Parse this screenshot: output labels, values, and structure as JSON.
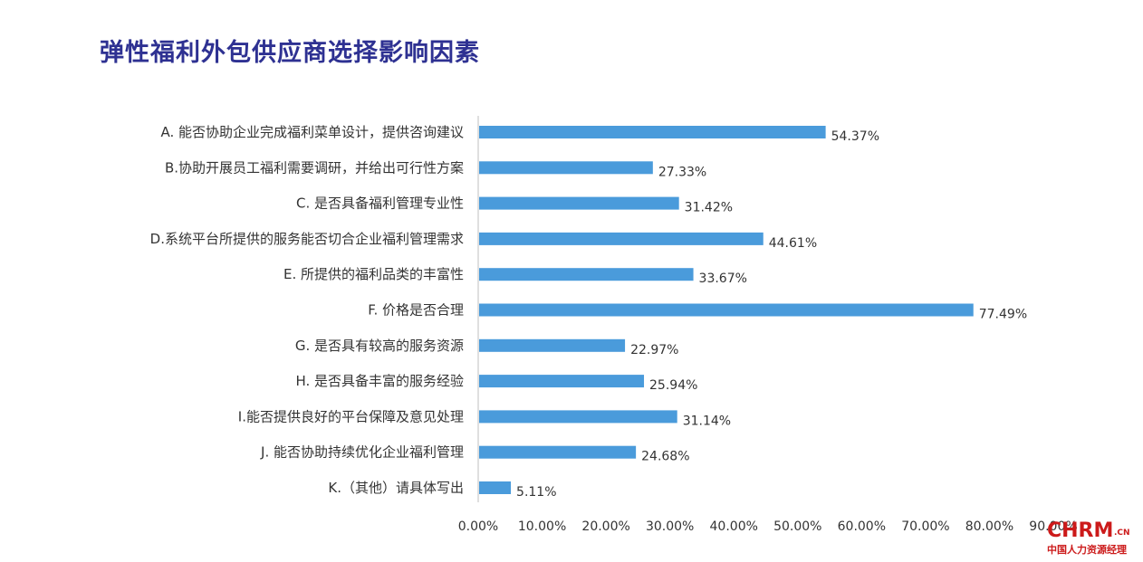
{
  "page": {
    "title": "弹性福利外包供应商选择影响因素"
  },
  "chart_data": {
    "type": "bar",
    "orientation": "horizontal",
    "title": "弹性福利外包供应商选择影响因素",
    "categories": [
      "A. 能否协助企业完成福利菜单设计，提供咨询建议",
      "B.协助开展员工福利需要调研，并给出可行性方案",
      "C. 是否具备福利管理专业性",
      "D.系统平台所提供的服务能否切合企业福利管理需求",
      "E. 所提供的福利品类的丰富性",
      "F. 价格是否合理",
      "G. 是否具有较高的服务资源",
      "H. 是否具备丰富的服务经验",
      "I.能否提供良好的平台保障及意见处理",
      "J. 能否协助持续优化企业福利管理",
      "K.（其他）请具体写出"
    ],
    "values": [
      54.37,
      27.33,
      31.42,
      44.61,
      33.67,
      77.49,
      22.97,
      25.94,
      31.14,
      24.68,
      5.11
    ],
    "value_labels": [
      "54.37%",
      "27.33%",
      "31.42%",
      "44.61%",
      "33.67%",
      "77.49%",
      "22.97%",
      "25.94%",
      "31.14%",
      "24.68%",
      "5.11%"
    ],
    "xlim": [
      0,
      90
    ],
    "xticks": [
      "0.00%",
      "10.00%",
      "20.00%",
      "30.00%",
      "40.00%",
      "50.00%",
      "60.00%",
      "70.00%",
      "80.00%",
      "90.00%"
    ],
    "grid": false,
    "bar_color": "#4a9bdb"
  },
  "watermark": {
    "main": "CHRM",
    "suffix": ".CN",
    "sub": "中国人力资源经理"
  }
}
